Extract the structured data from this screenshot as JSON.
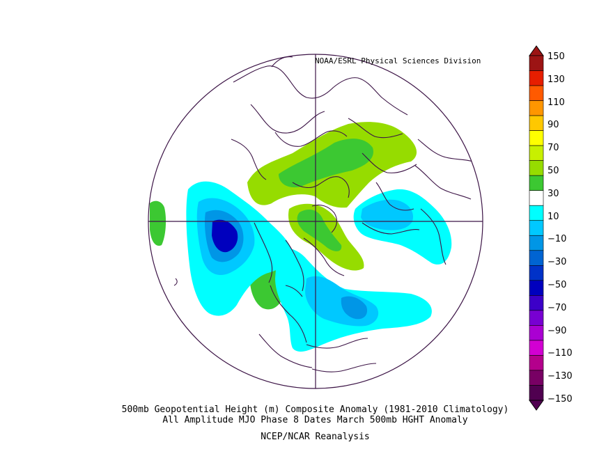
{
  "credit": "NOAA/ESRL Physical Sciences Division",
  "caption": {
    "line1": "500mb Geopotential Height (m) Composite Anomaly (1981-2010 Climatology)",
    "line2": "All Amplitude MJO Phase 8 Dates March 500mb HGHT Anomaly",
    "line3": "NCEP/NCAR Reanalysis"
  },
  "colorbar": {
    "labels": [
      "150",
      "130",
      "110",
      "90",
      "70",
      "50",
      "30",
      "10",
      "−10",
      "−30",
      "−50",
      "−70",
      "−90",
      "−110",
      "−130",
      "−150"
    ],
    "colors": [
      "#9c1414",
      "#e61e00",
      "#ff5a00",
      "#ff9600",
      "#ffc800",
      "#ffff00",
      "#c8f000",
      "#96dc00",
      "#3cc832",
      "#ffffff",
      "#00ffff",
      "#00c8ff",
      "#0096e6",
      "#0064d2",
      "#0032c8",
      "#0000be",
      "#3c00c8",
      "#7800d2",
      "#aa00d2",
      "#d200d2",
      "#b4008c",
      "#780064",
      "#500050"
    ]
  },
  "anomaly_colors": {
    "pos_light": "#96dc00",
    "pos_mid": "#3cc832",
    "neg_10": "#00ffff",
    "neg_30": "#00c8ff",
    "neg_50": "#0096e6",
    "neg_70": "#0000be"
  }
}
